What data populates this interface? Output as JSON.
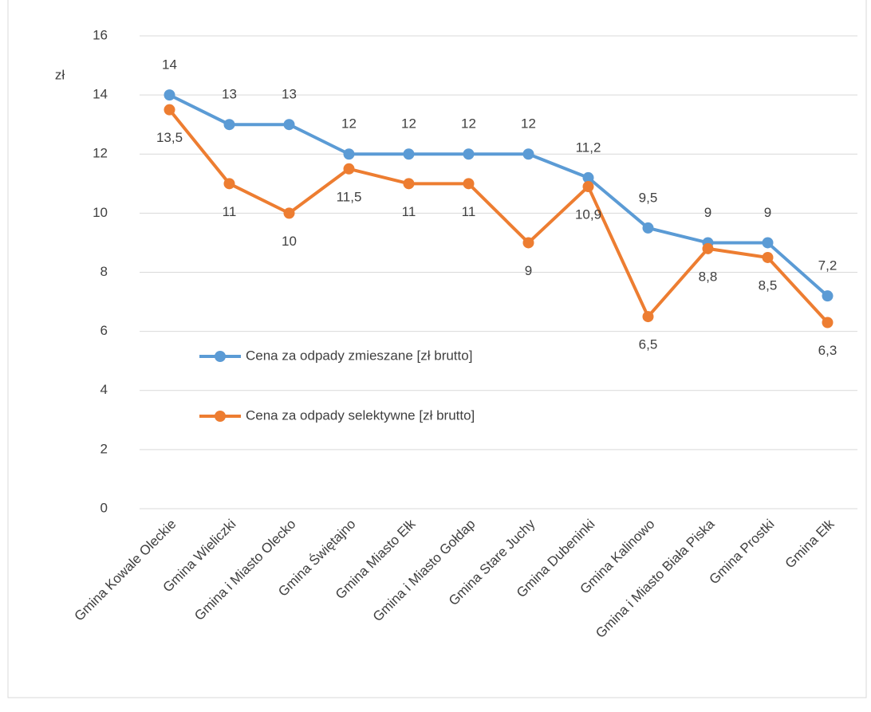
{
  "chart_data": {
    "type": "line",
    "y_label": "zł",
    "categories": [
      "Gmina Kowale Oleckie",
      "Gmina Wieliczki",
      "Gmina i Miasto Olecko",
      "Gmina Świętajno",
      "Gmina Miasto Ełk",
      "Gmina i Miasto Gołdap",
      "Gmina Stare Juchy",
      "Gmina Dubeninki",
      "Gmina Kalinowo",
      "Gmina i Miasto Biała Piska",
      "Gmina Prostki",
      "Gmina Ełk"
    ],
    "series": [
      {
        "name": "Cena za odpady zmieszane [zł brutto]",
        "color": "#5b9bd5",
        "values": [
          14,
          13,
          13,
          12,
          12,
          12,
          12,
          11.2,
          9.5,
          9,
          9,
          7.2
        ],
        "value_labels": [
          "14",
          "13",
          "13",
          "12",
          "12",
          "12",
          "12",
          "11,2",
          "9,5",
          "9",
          "9",
          "7,2"
        ]
      },
      {
        "name": "Cena za odpady selektywne [zł brutto]",
        "color": "#ed7d31",
        "values": [
          13.5,
          11,
          10,
          11.5,
          11,
          11,
          9,
          10.9,
          6.5,
          8.8,
          8.5,
          6.3
        ],
        "value_labels": [
          "13,5",
          "11",
          "10",
          "11,5",
          "11",
          "11",
          "9",
          "10,9",
          "6,5",
          "8,8",
          "8,5",
          "6,3"
        ]
      }
    ],
    "ylim": [
      0,
      16
    ],
    "yticks": [
      0,
      2,
      4,
      6,
      8,
      10,
      12,
      14,
      16
    ],
    "grid": true,
    "legend": "left"
  }
}
